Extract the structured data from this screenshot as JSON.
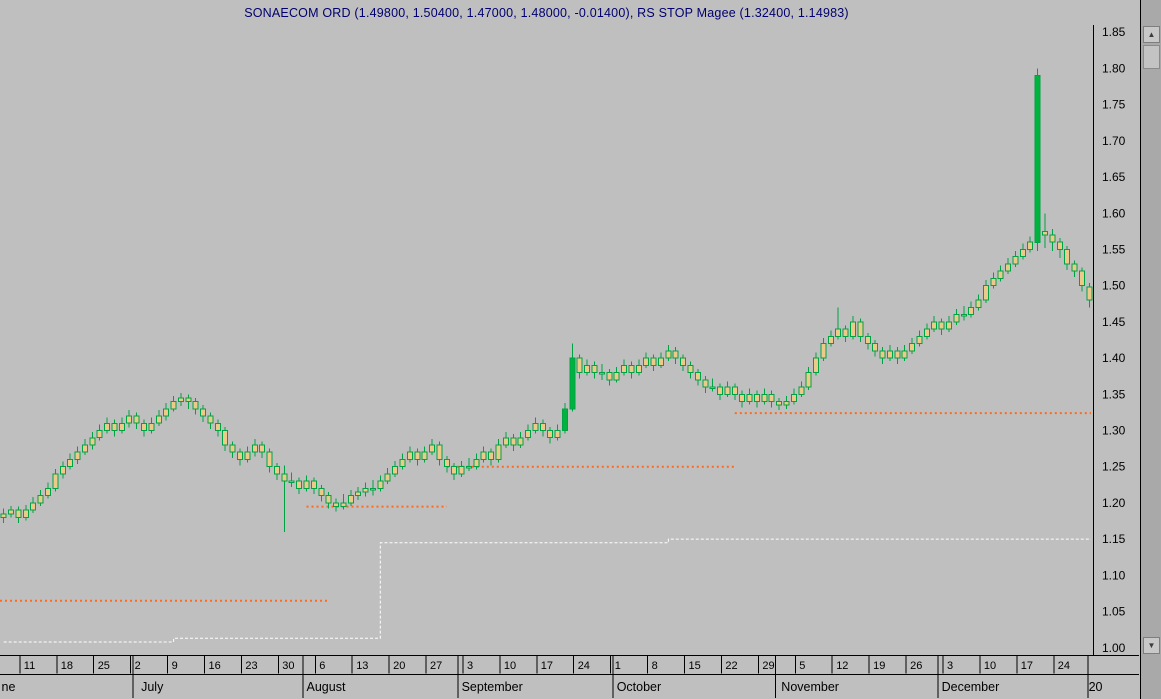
{
  "title": "SONAECOM ORD (1.49800, 1.50400, 1.47000, 1.48000, -0.01400), RS STOP Magee (1.32400, 1.14983)",
  "colors": {
    "background": "#bfbfbf",
    "title_color": "#00006e",
    "axis_line": "#000000",
    "axis_text": "#000000",
    "candle_body_fill": "#ecca8a",
    "candle_outline": "#00a344",
    "candle_solid_green_fill": "#00b33e",
    "stop_line_orange": "#ff6a1c",
    "rs_line_white": "#ffffff"
  },
  "y_axis": {
    "labels": [
      "1.85",
      "1.80",
      "1.75",
      "1.70",
      "1.65",
      "1.60",
      "1.55",
      "1.50",
      "1.45",
      "1.40",
      "1.35",
      "1.30",
      "1.25",
      "1.20",
      "1.15",
      "1.10",
      "1.05",
      "1.00"
    ]
  },
  "scrollbar": {
    "up_glyph": "▲",
    "down_glyph": "▼"
  },
  "chart_data": {
    "type": "candlestick",
    "symbol": "SONAECOM ORD",
    "title": "SONAECOM ORD (1.49800, 1.50400, 1.47000, 1.48000, -0.01400), RS STOP Magee (1.32400, 1.14983)",
    "last_bar": {
      "open": 1.498,
      "high": 1.504,
      "low": 1.47,
      "close": 1.48,
      "change": -0.014
    },
    "indicator": {
      "name": "RS STOP Magee",
      "values": [
        1.324,
        1.14983
      ]
    },
    "ylim": [
      0.99,
      1.86
    ],
    "y_tick_step": 0.05,
    "grid": false,
    "n": 148,
    "candles": [
      [
        1.18,
        1.192,
        1.172,
        1.185
      ],
      [
        1.185,
        1.196,
        1.18,
        1.19
      ],
      [
        1.19,
        1.195,
        1.172,
        1.18
      ],
      [
        1.18,
        1.197,
        1.176,
        1.19
      ],
      [
        1.19,
        1.208,
        1.186,
        1.2
      ],
      [
        1.2,
        1.218,
        1.196,
        1.21
      ],
      [
        1.21,
        1.228,
        1.206,
        1.22
      ],
      [
        1.22,
        1.247,
        1.216,
        1.24
      ],
      [
        1.24,
        1.257,
        1.234,
        1.25
      ],
      [
        1.25,
        1.268,
        1.246,
        1.26
      ],
      [
        1.26,
        1.278,
        1.254,
        1.27
      ],
      [
        1.27,
        1.288,
        1.266,
        1.28
      ],
      [
        1.28,
        1.298,
        1.274,
        1.29
      ],
      [
        1.29,
        1.308,
        1.286,
        1.3
      ],
      [
        1.3,
        1.318,
        1.296,
        1.31
      ],
      [
        1.31,
        1.315,
        1.292,
        1.3
      ],
      [
        1.3,
        1.318,
        1.296,
        1.31
      ],
      [
        1.31,
        1.328,
        1.304,
        1.32
      ],
      [
        1.32,
        1.325,
        1.302,
        1.31
      ],
      [
        1.31,
        1.315,
        1.292,
        1.3
      ],
      [
        1.3,
        1.318,
        1.296,
        1.31
      ],
      [
        1.31,
        1.328,
        1.306,
        1.32
      ],
      [
        1.32,
        1.338,
        1.314,
        1.33
      ],
      [
        1.33,
        1.348,
        1.326,
        1.34
      ],
      [
        1.34,
        1.352,
        1.334,
        1.345
      ],
      [
        1.345,
        1.35,
        1.33,
        1.34
      ],
      [
        1.34,
        1.345,
        1.322,
        1.33
      ],
      [
        1.33,
        1.335,
        1.312,
        1.32
      ],
      [
        1.32,
        1.325,
        1.302,
        1.31
      ],
      [
        1.31,
        1.315,
        1.292,
        1.3
      ],
      [
        1.3,
        1.305,
        1.272,
        1.28
      ],
      [
        1.28,
        1.285,
        1.262,
        1.27
      ],
      [
        1.27,
        1.275,
        1.252,
        1.26
      ],
      [
        1.26,
        1.278,
        1.256,
        1.27
      ],
      [
        1.27,
        1.288,
        1.264,
        1.28
      ],
      [
        1.28,
        1.285,
        1.262,
        1.27
      ],
      [
        1.27,
        1.275,
        1.242,
        1.25
      ],
      [
        1.25,
        1.255,
        1.232,
        1.24
      ],
      [
        1.24,
        1.252,
        1.16,
        1.23
      ],
      [
        1.23,
        1.242,
        1.222,
        1.23
      ],
      [
        1.23,
        1.235,
        1.212,
        1.22
      ],
      [
        1.22,
        1.238,
        1.216,
        1.23
      ],
      [
        1.23,
        1.235,
        1.212,
        1.22
      ],
      [
        1.22,
        1.225,
        1.202,
        1.21
      ],
      [
        1.21,
        1.215,
        1.192,
        1.2
      ],
      [
        1.2,
        1.206,
        1.188,
        1.195
      ],
      [
        1.195,
        1.212,
        1.191,
        1.2
      ],
      [
        1.2,
        1.218,
        1.196,
        1.21
      ],
      [
        1.21,
        1.222,
        1.204,
        1.215
      ],
      [
        1.215,
        1.228,
        1.209,
        1.22
      ],
      [
        1.22,
        1.232,
        1.21,
        1.22
      ],
      [
        1.22,
        1.238,
        1.216,
        1.23
      ],
      [
        1.23,
        1.248,
        1.226,
        1.24
      ],
      [
        1.24,
        1.258,
        1.236,
        1.25
      ],
      [
        1.25,
        1.268,
        1.246,
        1.26
      ],
      [
        1.26,
        1.278,
        1.256,
        1.27
      ],
      [
        1.27,
        1.275,
        1.252,
        1.26
      ],
      [
        1.26,
        1.278,
        1.256,
        1.27
      ],
      [
        1.27,
        1.288,
        1.266,
        1.28
      ],
      [
        1.28,
        1.285,
        1.252,
        1.26
      ],
      [
        1.26,
        1.265,
        1.242,
        1.25
      ],
      [
        1.25,
        1.255,
        1.232,
        1.24
      ],
      [
        1.24,
        1.258,
        1.236,
        1.25
      ],
      [
        1.25,
        1.262,
        1.244,
        1.25
      ],
      [
        1.25,
        1.268,
        1.246,
        1.26
      ],
      [
        1.26,
        1.278,
        1.256,
        1.27
      ],
      [
        1.27,
        1.275,
        1.252,
        1.26
      ],
      [
        1.26,
        1.288,
        1.256,
        1.28
      ],
      [
        1.28,
        1.298,
        1.276,
        1.29
      ],
      [
        1.29,
        1.295,
        1.272,
        1.28
      ],
      [
        1.28,
        1.298,
        1.276,
        1.29
      ],
      [
        1.29,
        1.308,
        1.286,
        1.3
      ],
      [
        1.3,
        1.318,
        1.296,
        1.31
      ],
      [
        1.31,
        1.315,
        1.292,
        1.3
      ],
      [
        1.3,
        1.305,
        1.282,
        1.29
      ],
      [
        1.29,
        1.308,
        1.286,
        1.3
      ],
      [
        1.3,
        1.338,
        1.296,
        1.33
      ],
      [
        1.33,
        1.42,
        1.326,
        1.4
      ],
      [
        1.4,
        1.405,
        1.372,
        1.38
      ],
      [
        1.38,
        1.398,
        1.376,
        1.39
      ],
      [
        1.39,
        1.395,
        1.372,
        1.38
      ],
      [
        1.38,
        1.392,
        1.37,
        1.38
      ],
      [
        1.38,
        1.385,
        1.362,
        1.37
      ],
      [
        1.37,
        1.388,
        1.366,
        1.38
      ],
      [
        1.38,
        1.398,
        1.376,
        1.39
      ],
      [
        1.39,
        1.395,
        1.372,
        1.38
      ],
      [
        1.38,
        1.398,
        1.376,
        1.39
      ],
      [
        1.39,
        1.408,
        1.386,
        1.4
      ],
      [
        1.4,
        1.405,
        1.382,
        1.39
      ],
      [
        1.39,
        1.408,
        1.386,
        1.4
      ],
      [
        1.4,
        1.418,
        1.396,
        1.41
      ],
      [
        1.41,
        1.415,
        1.392,
        1.4
      ],
      [
        1.4,
        1.405,
        1.382,
        1.39
      ],
      [
        1.39,
        1.395,
        1.372,
        1.38
      ],
      [
        1.38,
        1.385,
        1.362,
        1.37
      ],
      [
        1.37,
        1.375,
        1.352,
        1.36
      ],
      [
        1.36,
        1.372,
        1.354,
        1.36
      ],
      [
        1.36,
        1.365,
        1.342,
        1.35
      ],
      [
        1.35,
        1.368,
        1.346,
        1.36
      ],
      [
        1.36,
        1.365,
        1.342,
        1.35
      ],
      [
        1.35,
        1.355,
        1.332,
        1.34
      ],
      [
        1.34,
        1.358,
        1.336,
        1.35
      ],
      [
        1.35,
        1.355,
        1.332,
        1.34
      ],
      [
        1.34,
        1.358,
        1.336,
        1.35
      ],
      [
        1.35,
        1.355,
        1.332,
        1.34
      ],
      [
        1.34,
        1.345,
        1.328,
        1.335
      ],
      [
        1.335,
        1.348,
        1.33,
        1.34
      ],
      [
        1.34,
        1.358,
        1.336,
        1.35
      ],
      [
        1.35,
        1.368,
        1.346,
        1.36
      ],
      [
        1.36,
        1.388,
        1.356,
        1.38
      ],
      [
        1.38,
        1.408,
        1.376,
        1.4
      ],
      [
        1.4,
        1.428,
        1.396,
        1.42
      ],
      [
        1.42,
        1.438,
        1.416,
        1.43
      ],
      [
        1.43,
        1.47,
        1.426,
        1.44
      ],
      [
        1.44,
        1.445,
        1.422,
        1.43
      ],
      [
        1.43,
        1.458,
        1.426,
        1.45
      ],
      [
        1.45,
        1.455,
        1.422,
        1.43
      ],
      [
        1.43,
        1.435,
        1.412,
        1.42
      ],
      [
        1.42,
        1.425,
        1.402,
        1.41
      ],
      [
        1.41,
        1.415,
        1.392,
        1.4
      ],
      [
        1.4,
        1.418,
        1.396,
        1.41
      ],
      [
        1.41,
        1.415,
        1.392,
        1.4
      ],
      [
        1.4,
        1.418,
        1.396,
        1.41
      ],
      [
        1.41,
        1.428,
        1.406,
        1.42
      ],
      [
        1.42,
        1.438,
        1.416,
        1.43
      ],
      [
        1.43,
        1.448,
        1.426,
        1.44
      ],
      [
        1.44,
        1.458,
        1.436,
        1.45
      ],
      [
        1.45,
        1.455,
        1.432,
        1.44
      ],
      [
        1.44,
        1.458,
        1.436,
        1.45
      ],
      [
        1.45,
        1.468,
        1.446,
        1.46
      ],
      [
        1.46,
        1.472,
        1.452,
        1.46
      ],
      [
        1.46,
        1.478,
        1.456,
        1.47
      ],
      [
        1.47,
        1.488,
        1.466,
        1.48
      ],
      [
        1.48,
        1.508,
        1.476,
        1.5
      ],
      [
        1.5,
        1.518,
        1.496,
        1.51
      ],
      [
        1.51,
        1.528,
        1.506,
        1.52
      ],
      [
        1.52,
        1.538,
        1.516,
        1.53
      ],
      [
        1.53,
        1.548,
        1.526,
        1.54
      ],
      [
        1.54,
        1.558,
        1.536,
        1.55
      ],
      [
        1.55,
        1.568,
        1.546,
        1.56
      ],
      [
        1.56,
        1.8,
        1.548,
        1.79
      ],
      [
        1.575,
        1.6,
        1.552,
        1.57
      ],
      [
        1.57,
        1.578,
        1.548,
        1.56
      ],
      [
        1.56,
        1.566,
        1.538,
        1.55
      ],
      [
        1.55,
        1.555,
        1.522,
        1.53
      ],
      [
        1.53,
        1.535,
        1.512,
        1.52
      ],
      [
        1.52,
        1.525,
        1.492,
        1.5
      ],
      [
        1.498,
        1.504,
        1.47,
        1.48
      ]
    ],
    "solid_green_indices": [
      76,
      77,
      140
    ],
    "stop_lines": [
      {
        "price": 1.065,
        "from": 0,
        "to": 44
      },
      {
        "price": 1.195,
        "from": 42,
        "to": 60
      },
      {
        "price": 1.25,
        "from": 61,
        "to": 99
      },
      {
        "price": 1.324,
        "from": 100,
        "to": 148
      }
    ],
    "white_line_steps": [
      {
        "price": 1.008,
        "from": 0,
        "to": 23
      },
      {
        "price": 1.013,
        "from": 23,
        "to": 51
      },
      {
        "price": 1.145,
        "from": 51,
        "to": 90
      },
      {
        "price": 1.15,
        "from": 90,
        "to": 148
      }
    ],
    "x_week_ticks": [
      {
        "label": "11",
        "i": 3
      },
      {
        "label": "18",
        "i": 8
      },
      {
        "label": "25",
        "i": 13
      },
      {
        "label": "2",
        "i": 18
      },
      {
        "label": "9",
        "i": 23
      },
      {
        "label": "16",
        "i": 28
      },
      {
        "label": "23",
        "i": 33
      },
      {
        "label": "30",
        "i": 38
      },
      {
        "label": "6",
        "i": 43
      },
      {
        "label": "13",
        "i": 48
      },
      {
        "label": "20",
        "i": 53
      },
      {
        "label": "27",
        "i": 58
      },
      {
        "label": "3",
        "i": 63
      },
      {
        "label": "10",
        "i": 68
      },
      {
        "label": "17",
        "i": 73
      },
      {
        "label": "24",
        "i": 78
      },
      {
        "label": "1",
        "i": 83
      },
      {
        "label": "8",
        "i": 88
      },
      {
        "label": "15",
        "i": 93
      },
      {
        "label": "22",
        "i": 98
      },
      {
        "label": "29",
        "i": 103
      },
      {
        "label": "5",
        "i": 108
      },
      {
        "label": "12",
        "i": 113
      },
      {
        "label": "19",
        "i": 118
      },
      {
        "label": "26",
        "i": 123
      },
      {
        "label": "3",
        "i": 128
      },
      {
        "label": "10",
        "i": 133
      },
      {
        "label": "17",
        "i": 138
      },
      {
        "label": "24",
        "i": 143
      }
    ],
    "x_months": [
      {
        "label": "ne",
        "sep": null,
        "li": -0.3
      },
      {
        "label": "July",
        "sep": 17.5,
        "li": 18.6
      },
      {
        "label": "August",
        "sep": 40.5,
        "li": 41.0
      },
      {
        "label": "September",
        "sep": 61.5,
        "li": 62.0
      },
      {
        "label": "October",
        "sep": 82.5,
        "li": 83.0
      },
      {
        "label": "November",
        "sep": 104.5,
        "li": 105.3
      },
      {
        "label": "December",
        "sep": 126.5,
        "li": 127.0
      },
      {
        "label": "20",
        "sep": 146.8,
        "li": 146.9
      }
    ]
  }
}
